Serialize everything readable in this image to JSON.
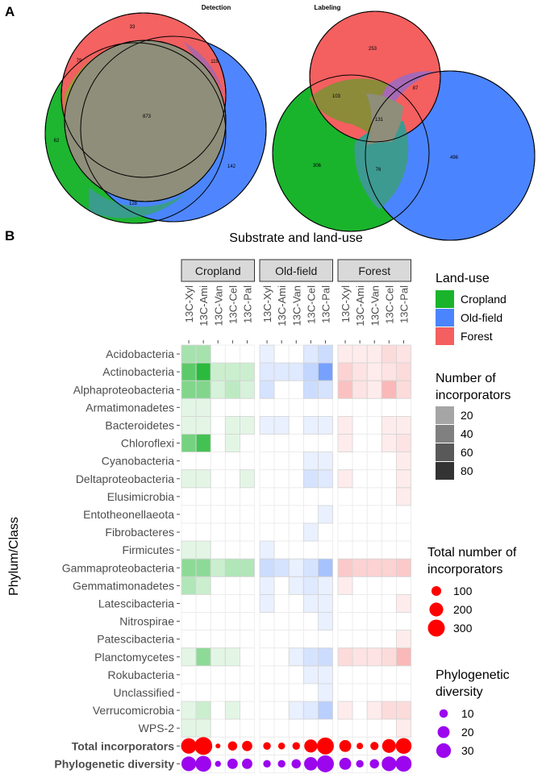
{
  "panel_a": {
    "label": "A",
    "venns": [
      {
        "title": "Detection",
        "sets": [
          "Cropland",
          "Old-field",
          "Forest"
        ],
        "regions": {
          "forest_only": "33",
          "cropland_forest": "79",
          "oldfield_forest": "115",
          "all_three": "873",
          "cropland_only": "62",
          "oldfield_only": "142",
          "cropland_oldfield": "128"
        }
      },
      {
        "title": "Labeling",
        "sets": [
          "Cropland",
          "Old-field",
          "Forest"
        ],
        "regions": {
          "forest_only": "253",
          "cropland_forest": "103",
          "oldfield_forest": "87",
          "all_three": "131",
          "cropland_only": "306",
          "oldfield_only": "496",
          "cropland_oldfield": "76"
        }
      }
    ]
  },
  "panel_b": {
    "label": "B",
    "title": "Substrate and land-use",
    "ylabel": "Phylum/Class"
  },
  "colors": {
    "Cropland": "#19B42C",
    "Old-field": "#4B84FF",
    "Forest": "#F45F5F",
    "Total incorporators": "#FF0000",
    "Phylogenetic diversity": "#9B06EE"
  },
  "chart_data": {
    "type": "heatmap",
    "land_uses": [
      "Cropland",
      "Old-field",
      "Forest"
    ],
    "substrates": [
      "13C-Xyl",
      "13C-Ami",
      "13C-Van",
      "13C-Cel",
      "13C-Pal"
    ],
    "taxa": [
      "Acidobacteria",
      "Actinobacteria",
      "Alphaproteobacteria",
      "Armatimonadetes",
      "Bacteroidetes",
      "Chloroflexi",
      "Cyanobacteria",
      "Deltaproteobacteria",
      "Elusimicrobia",
      "Entotheonellaeota",
      "Fibrobacteres",
      "Firmicutes",
      "Gammaproteobacteria",
      "Gemmatimonadetes",
      "Latescibacteria",
      "Nitrospirae",
      "Patescibacteria",
      "Planctomycetes",
      "Rokubacteria",
      "Unclassified",
      "Verrucomicrobia",
      "WPS-2"
    ],
    "incorporators": {
      "Cropland": [
        [
          30,
          30,
          0,
          0,
          0
        ],
        [
          60,
          80,
          15,
          15,
          15
        ],
        [
          45,
          45,
          10,
          20,
          10
        ],
        [
          5,
          5,
          0,
          0,
          0
        ],
        [
          5,
          5,
          0,
          5,
          5
        ],
        [
          50,
          70,
          0,
          5,
          0
        ],
        [
          0,
          0,
          0,
          0,
          0
        ],
        [
          5,
          5,
          0,
          0,
          5
        ],
        [
          0,
          0,
          0,
          0,
          0
        ],
        [
          0,
          0,
          0,
          0,
          0
        ],
        [
          0,
          0,
          0,
          0,
          0
        ],
        [
          5,
          5,
          0,
          0,
          0
        ],
        [
          40,
          40,
          15,
          25,
          25
        ],
        [
          25,
          15,
          0,
          0,
          0
        ],
        [
          0,
          0,
          0,
          0,
          0
        ],
        [
          0,
          0,
          0,
          0,
          0
        ],
        [
          0,
          0,
          0,
          0,
          0
        ],
        [
          5,
          40,
          5,
          5,
          0
        ],
        [
          0,
          0,
          0,
          0,
          0
        ],
        [
          0,
          0,
          0,
          0,
          0
        ],
        [
          5,
          15,
          0,
          5,
          0
        ],
        [
          5,
          5,
          0,
          0,
          0
        ]
      ],
      "Old-field": [
        [
          5,
          0,
          0,
          10,
          20
        ],
        [
          10,
          10,
          10,
          25,
          65
        ],
        [
          15,
          0,
          0,
          20,
          15
        ],
        [
          0,
          0,
          0,
          0,
          0
        ],
        [
          5,
          5,
          0,
          5,
          5
        ],
        [
          0,
          0,
          0,
          0,
          0
        ],
        [
          0,
          0,
          0,
          5,
          5
        ],
        [
          0,
          0,
          0,
          15,
          10
        ],
        [
          0,
          0,
          0,
          0,
          0
        ],
        [
          0,
          0,
          0,
          0,
          5
        ],
        [
          0,
          0,
          0,
          5,
          0
        ],
        [
          5,
          0,
          0,
          0,
          0
        ],
        [
          20,
          15,
          5,
          15,
          40
        ],
        [
          5,
          0,
          5,
          10,
          5
        ],
        [
          5,
          0,
          0,
          5,
          5
        ],
        [
          0,
          0,
          0,
          0,
          5
        ],
        [
          0,
          0,
          0,
          0,
          0
        ],
        [
          0,
          0,
          5,
          15,
          20
        ],
        [
          0,
          0,
          0,
          5,
          5
        ],
        [
          0,
          0,
          0,
          0,
          5
        ],
        [
          0,
          0,
          5,
          10,
          30
        ],
        [
          0,
          0,
          0,
          0,
          0
        ]
      ],
      "Forest": [
        [
          5,
          5,
          5,
          15,
          10
        ],
        [
          20,
          10,
          5,
          10,
          15
        ],
        [
          30,
          10,
          5,
          35,
          15
        ],
        [
          0,
          0,
          0,
          0,
          0
        ],
        [
          5,
          0,
          0,
          5,
          5
        ],
        [
          5,
          0,
          0,
          5,
          10
        ],
        [
          0,
          0,
          0,
          0,
          5
        ],
        [
          5,
          0,
          0,
          0,
          5
        ],
        [
          0,
          0,
          0,
          0,
          5
        ],
        [
          0,
          0,
          0,
          0,
          0
        ],
        [
          0,
          0,
          0,
          0,
          0
        ],
        [
          0,
          0,
          0,
          0,
          0
        ],
        [
          25,
          20,
          20,
          20,
          25
        ],
        [
          5,
          0,
          0,
          0,
          0
        ],
        [
          0,
          0,
          0,
          0,
          5
        ],
        [
          0,
          0,
          0,
          0,
          0
        ],
        [
          0,
          0,
          0,
          0,
          5
        ],
        [
          15,
          10,
          10,
          15,
          35
        ],
        [
          0,
          0,
          0,
          0,
          0
        ],
        [
          0,
          0,
          0,
          0,
          0
        ],
        [
          5,
          0,
          5,
          15,
          15
        ],
        [
          0,
          0,
          0,
          0,
          5
        ]
      ]
    },
    "summary_rows": [
      {
        "name": "Total incorporators",
        "values": {
          "Cropland": [
            250,
            330,
            25,
            90,
            110
          ],
          "Old-field": [
            60,
            50,
            60,
            180,
            300
          ],
          "Forest": [
            150,
            45,
            70,
            200,
            260
          ]
        }
      },
      {
        "name": "Phylogenetic diversity",
        "values": {
          "Cropland": [
            30,
            35,
            5,
            15,
            15
          ],
          "Old-field": [
            8,
            8,
            12,
            25,
            40
          ],
          "Forest": [
            20,
            8,
            12,
            30,
            35
          ]
        }
      }
    ],
    "legends": [
      {
        "title": "Land-use",
        "type": "fill",
        "items": [
          "Cropland",
          "Old-field",
          "Forest"
        ]
      },
      {
        "title": "Number of incorporators",
        "type": "alpha",
        "values": [
          20,
          40,
          60,
          80
        ]
      },
      {
        "title": "Total number of incorporators",
        "type": "size",
        "values": [
          100,
          200,
          300
        ],
        "color": "#FF0000"
      },
      {
        "title": "Phylogenetic diversity",
        "type": "size",
        "values": [
          10,
          20,
          30
        ],
        "color": "#9B06EE"
      }
    ],
    "grid": true
  }
}
